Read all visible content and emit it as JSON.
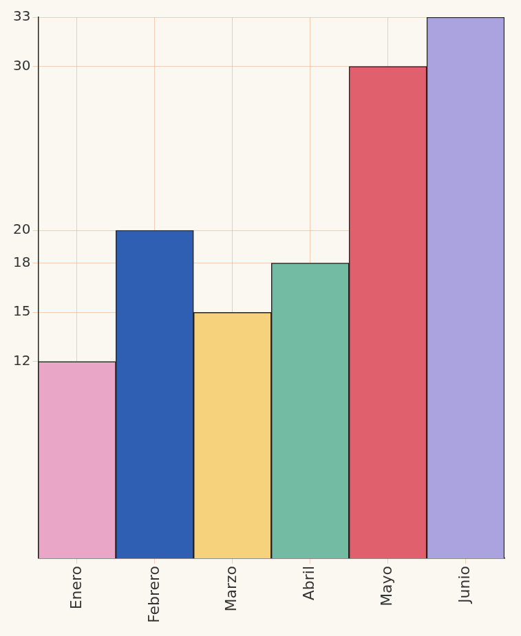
{
  "chart_data": {
    "type": "bar",
    "categories": [
      "Enero",
      "Febrero",
      "Marzo",
      "Abril",
      "Mayo",
      "Junio"
    ],
    "values": [
      12,
      20,
      15,
      18,
      30,
      33
    ],
    "colors": [
      "#e9a6c6",
      "#2f5fb3",
      "#f6d27c",
      "#74bba3",
      "#e0606e",
      "#aaa3df"
    ],
    "ylim": [
      0,
      33
    ],
    "yticks": [
      12,
      15,
      18,
      20,
      30,
      33
    ],
    "grid": true
  }
}
